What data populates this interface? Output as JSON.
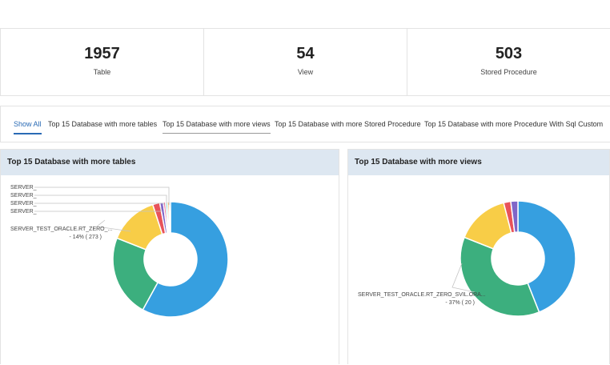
{
  "stats": [
    {
      "value": "1957",
      "label": "Table"
    },
    {
      "value": "54",
      "label": "View"
    },
    {
      "value": "503",
      "label": "Stored Procedure"
    }
  ],
  "tabs": [
    {
      "label": "Show All"
    },
    {
      "label": "Top 15 Database with more tables"
    },
    {
      "label": "Top 15 Database with more views"
    },
    {
      "label": "Top 15 Database with more Stored Procedure"
    },
    {
      "label": "Top 15 Database with more Procedure With Sql Custom"
    }
  ],
  "panels": [
    {
      "title": "Top 15 Database with more tables"
    },
    {
      "title": "Top 15 Database with more views"
    }
  ],
  "colors": {
    "blue": "#369fe0",
    "green": "#3caf7e",
    "yellow": "#f8cd47",
    "red": "#e8535a",
    "purple": "#7f66c8",
    "pink": "#e75c8b",
    "teal": "#3cbcb0",
    "orange": "#f3a33c",
    "active_tab": "#2a6bb5",
    "panel_header": "#dde7f1"
  },
  "chart_data": [
    {
      "type": "pie",
      "title": "Top 15 Database with more tables",
      "labels": [
        "SERVER_",
        "SERVER_",
        "SERVER_",
        "SERVER_",
        "SERVER_TEST_ORACLE.RT_ZERO_..."
      ],
      "annotation_value": "- 14% ( 273 )",
      "slices": [
        {
          "label": "",
          "value": 58,
          "color": "#369fe0"
        },
        {
          "label": "",
          "value": 23,
          "color": "#3caf7e"
        },
        {
          "label": "SERVER_TEST_ORACLE.RT_ZERO_...",
          "value": 14,
          "color": "#f8cd47"
        },
        {
          "label": "",
          "value": 2,
          "color": "#e8535a"
        },
        {
          "label": "",
          "value": 1,
          "color": "#7f66c8"
        },
        {
          "label": "SERVER_",
          "value": 0.6,
          "color": "#e75c8b"
        },
        {
          "label": "SERVER_",
          "value": 0.5,
          "color": "#3cbcb0"
        },
        {
          "label": "SERVER_",
          "value": 0.5,
          "color": "#f3a33c"
        },
        {
          "label": "SERVER_",
          "value": 0.4,
          "color": "#369fe0"
        }
      ]
    },
    {
      "type": "pie",
      "title": "Top 15 Database with more views",
      "labels": [
        "SERVER_TEST_ORACLE.RT_ZERO_SVIL.ORA..."
      ],
      "annotation_value": "- 37% ( 20 )",
      "slices": [
        {
          "label": "",
          "value": 44,
          "color": "#369fe0"
        },
        {
          "label": "SERVER_TEST_ORACLE.RT_ZERO_SVIL.ORA...",
          "value": 37,
          "color": "#3caf7e"
        },
        {
          "label": "",
          "value": 15,
          "color": "#f8cd47"
        },
        {
          "label": "",
          "value": 2,
          "color": "#e8535a"
        },
        {
          "label": "",
          "value": 2,
          "color": "#7f66c8"
        }
      ]
    }
  ]
}
